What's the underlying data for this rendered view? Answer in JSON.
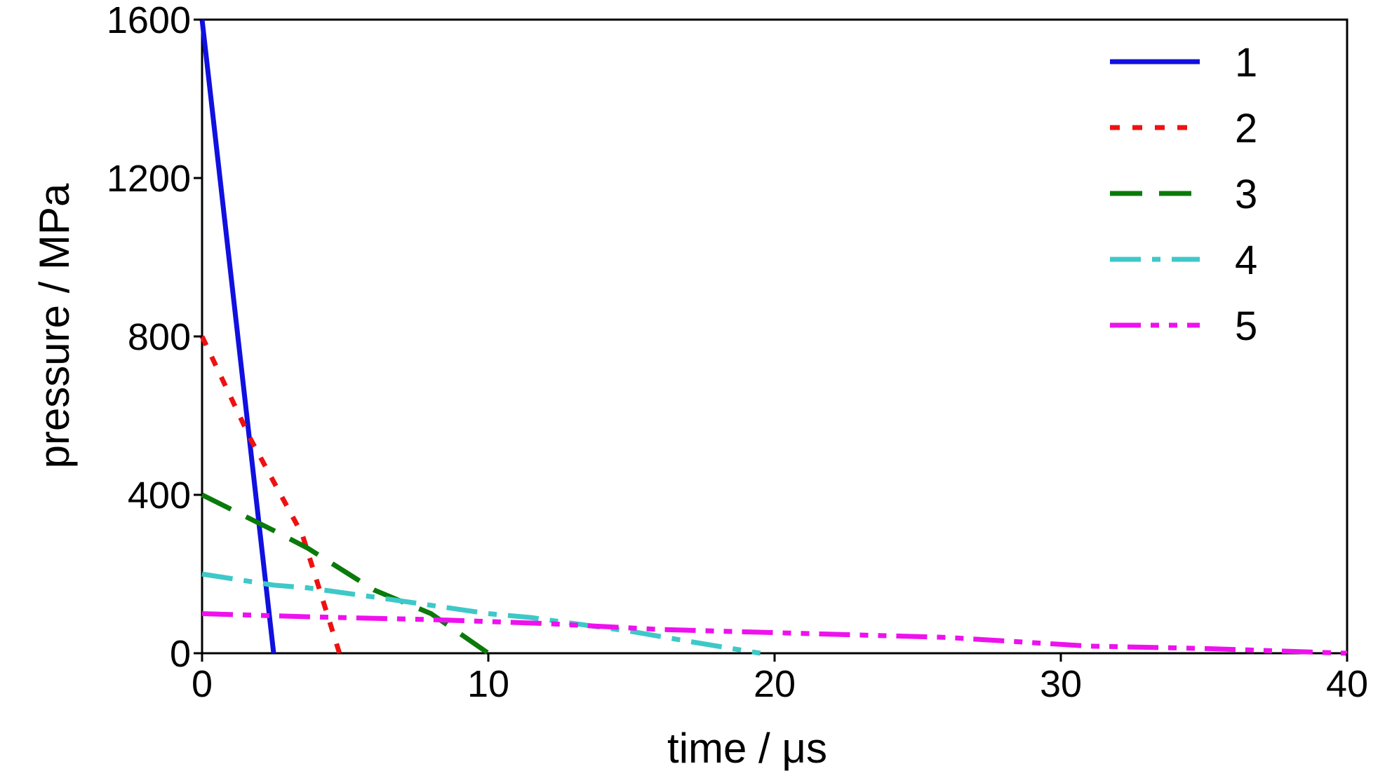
{
  "chart_data": {
    "type": "line",
    "xlabel": "time / μs",
    "ylabel": "pressure / MPa",
    "xlim": [
      0,
      40
    ],
    "ylim": [
      0,
      1600
    ],
    "xticks": [
      "0",
      "10",
      "20",
      "30",
      "40"
    ],
    "yticks": [
      "0",
      "400",
      "800",
      "1200",
      "1600"
    ],
    "grid": false,
    "legend_position": "top-right",
    "series": [
      {
        "name": "1",
        "color": "#1010e0",
        "style": "solid",
        "x": [
          0,
          2.5
        ],
        "y": [
          1600,
          0
        ]
      },
      {
        "name": "2",
        "color": "#ee1111",
        "style": "dotted",
        "x": [
          0,
          1.7,
          3.5,
          4.8
        ],
        "y": [
          800,
          540,
          300,
          0
        ]
      },
      {
        "name": "3",
        "color": "#0a7a0a",
        "style": "dashed",
        "x": [
          0,
          2.5,
          3.7,
          6,
          8,
          10
        ],
        "y": [
          400,
          310,
          265,
          160,
          100,
          0
        ]
      },
      {
        "name": "4",
        "color": "#3ec8c8",
        "style": "dash-dot",
        "x": [
          0,
          2.5,
          3.7,
          6.2,
          10,
          11.5,
          15,
          17,
          19.5
        ],
        "y": [
          200,
          172,
          165,
          140,
          100,
          90,
          55,
          30,
          0
        ]
      },
      {
        "name": "5",
        "color": "#ee11ee",
        "style": "dash-dot-dot",
        "x": [
          0,
          3.7,
          8,
          12,
          16,
          21,
          26,
          31,
          35,
          40
        ],
        "y": [
          100,
          92,
          85,
          75,
          60,
          50,
          40,
          18,
          12,
          0
        ]
      }
    ]
  }
}
